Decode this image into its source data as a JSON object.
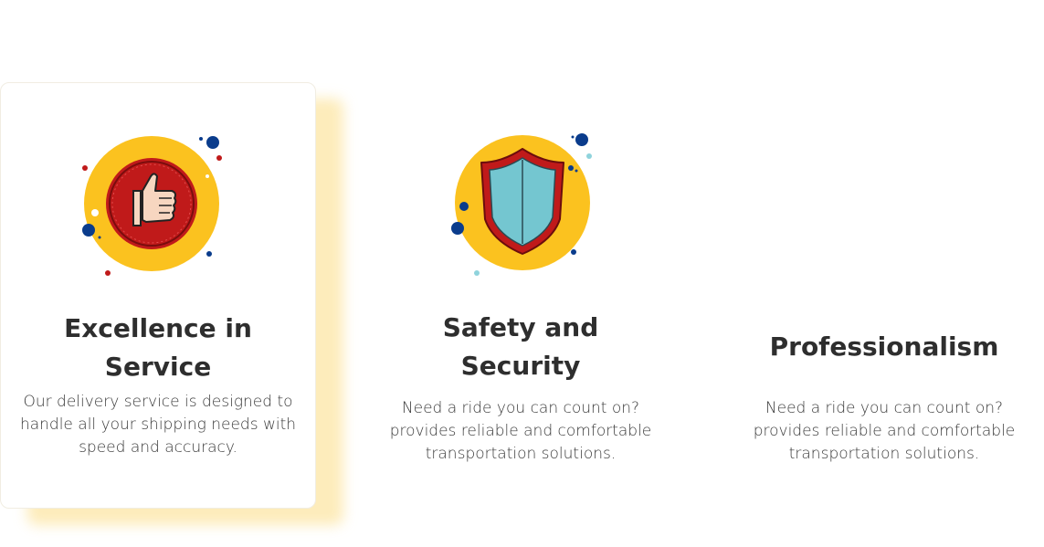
{
  "features": [
    {
      "title": "Excellence in Service",
      "description": "Our delivery service is designed to handle all your shipping needs with speed and accuracy.",
      "icon": "thumbs-up-icon"
    },
    {
      "title": "Safety and Security",
      "description": "Need a ride you can count on? provides reliable and comfortable transportation solutions.",
      "icon": "shield-icon"
    },
    {
      "title": "Professionalism",
      "description": "Need a ride you can count on? provides reliable and comfortable transportation solutions.",
      "icon": ""
    }
  ],
  "colors": {
    "icon_circle": "#FBC21F",
    "badge_red": "#C01A1A",
    "dot_blue": "#0A3C8C",
    "shield_fill": "#74C6D0",
    "card_shadow": "#FCE296"
  }
}
